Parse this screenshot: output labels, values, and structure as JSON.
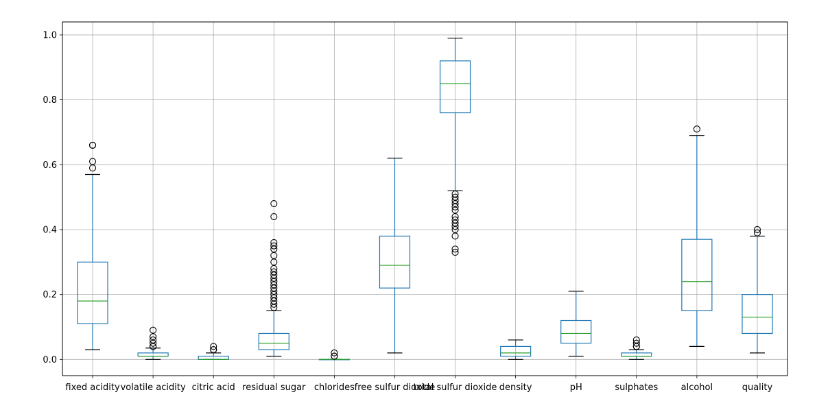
{
  "chart_data": {
    "type": "box",
    "title": "",
    "xlabel": "",
    "ylabel": "",
    "ylim": [
      -0.05,
      1.04
    ],
    "yticks": [
      0.0,
      0.2,
      0.4,
      0.6,
      0.8,
      1.0
    ],
    "ytick_labels": [
      "0.0",
      "0.2",
      "0.4",
      "0.6",
      "0.8",
      "1.0"
    ],
    "grid": true,
    "colors": {
      "box": "#1f77b4",
      "median": "#2ca02c",
      "grid": "#b0b0b0",
      "whisker_cap": "#000000",
      "outlier": "#000000"
    },
    "categories": [
      "fixed acidity",
      "volatile acidity",
      "citric acid",
      "residual sugar",
      "chlorides",
      "free sulfur dioxide",
      "total sulfur dioxide",
      "density",
      "pH",
      "sulphates",
      "alcohol",
      "quality"
    ],
    "boxes": [
      {
        "label": "fixed acidity",
        "whislo": 0.03,
        "q1": 0.11,
        "med": 0.18,
        "q3": 0.3,
        "whishi": 0.57,
        "fliers": [
          0.59,
          0.61,
          0.66,
          0.66
        ]
      },
      {
        "label": "volatile acidity",
        "whislo": 0.0,
        "q1": 0.01,
        "med": 0.01,
        "q3": 0.02,
        "whishi": 0.035,
        "fliers": [
          0.04,
          0.04,
          0.05,
          0.06,
          0.07,
          0.09
        ]
      },
      {
        "label": "citric acid",
        "whislo": 0.0,
        "q1": 0.0,
        "med": 0.0,
        "q3": 0.01,
        "whishi": 0.02,
        "fliers": [
          0.03,
          0.03,
          0.04
        ]
      },
      {
        "label": "residual sugar",
        "whislo": 0.01,
        "q1": 0.03,
        "med": 0.05,
        "q3": 0.08,
        "whishi": 0.15,
        "fliers": [
          0.16,
          0.17,
          0.18,
          0.19,
          0.2,
          0.21,
          0.22,
          0.23,
          0.24,
          0.25,
          0.26,
          0.27,
          0.28,
          0.3,
          0.32,
          0.34,
          0.35,
          0.36,
          0.44,
          0.48
        ]
      },
      {
        "label": "chlorides",
        "whislo": 0.0,
        "q1": 0.0,
        "med": 0.0,
        "q3": 0.0,
        "whishi": 0.0,
        "fliers": [
          0.01,
          0.01,
          0.02
        ]
      },
      {
        "label": "free sulfur dioxide",
        "whislo": 0.02,
        "q1": 0.22,
        "med": 0.29,
        "q3": 0.38,
        "whishi": 0.62,
        "fliers": []
      },
      {
        "label": "total sulfur dioxide",
        "whislo": 0.52,
        "q1": 0.76,
        "med": 0.85,
        "q3": 0.92,
        "whishi": 0.99,
        "fliers": [
          0.33,
          0.34,
          0.38,
          0.4,
          0.41,
          0.42,
          0.43,
          0.44,
          0.46,
          0.47,
          0.48,
          0.49,
          0.5,
          0.51
        ]
      },
      {
        "label": "density",
        "whislo": 0.0,
        "q1": 0.01,
        "med": 0.02,
        "q3": 0.04,
        "whishi": 0.06,
        "fliers": []
      },
      {
        "label": "pH",
        "whislo": 0.01,
        "q1": 0.05,
        "med": 0.08,
        "q3": 0.12,
        "whishi": 0.21,
        "fliers": []
      },
      {
        "label": "sulphates",
        "whislo": 0.0,
        "q1": 0.01,
        "med": 0.01,
        "q3": 0.02,
        "whishi": 0.03,
        "fliers": [
          0.04,
          0.04,
          0.05,
          0.06
        ]
      },
      {
        "label": "alcohol",
        "whislo": 0.04,
        "q1": 0.15,
        "med": 0.24,
        "q3": 0.37,
        "whishi": 0.69,
        "fliers": [
          0.71
        ]
      },
      {
        "label": "quality",
        "whislo": 0.02,
        "q1": 0.08,
        "med": 0.13,
        "q3": 0.2,
        "whishi": 0.38,
        "fliers": [
          0.39,
          0.4
        ]
      }
    ]
  }
}
